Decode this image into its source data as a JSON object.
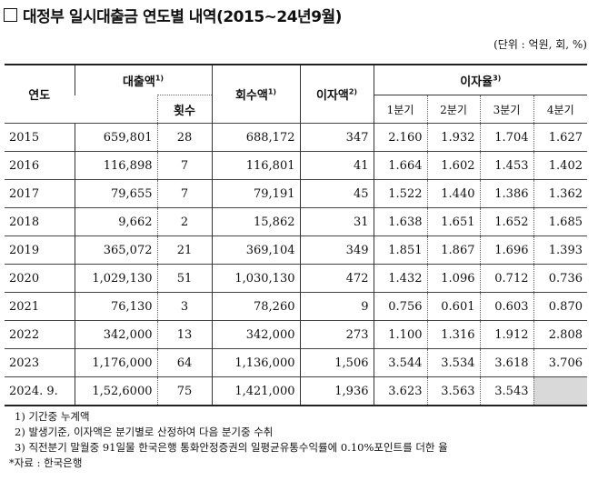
{
  "title": "대정부 일시대출금 연도별 내역(2015~24년9월)",
  "unit": "(단위 : 억원, 회, %)",
  "headers": {
    "year": "연도",
    "loan": "대출액",
    "loan_sup": "1)",
    "count": "횟수",
    "repay": "회수액",
    "repay_sup": "1)",
    "interest": "이자액",
    "interest_sup": "2)",
    "rate": "이자율",
    "rate_sup": "3)",
    "q1": "1분기",
    "q2": "2분기",
    "q3": "3분기",
    "q4": "4분기"
  },
  "rows": [
    [
      "2015",
      "659,801",
      "28",
      "688,172",
      "347",
      "2.160",
      "1.932",
      "1.704",
      "1.627"
    ],
    [
      "2016",
      "116,898",
      "7",
      "116,801",
      "41",
      "1.664",
      "1.602",
      "1.453",
      "1.402"
    ],
    [
      "2017",
      "79,655",
      "7",
      "79,191",
      "45",
      "1.522",
      "1.440",
      "1.386",
      "1.362"
    ],
    [
      "2018",
      "9,662",
      "2",
      "15,862",
      "31",
      "1.638",
      "1.651",
      "1.652",
      "1.685"
    ],
    [
      "2019",
      "365,072",
      "21",
      "369,104",
      "349",
      "1.851",
      "1.867",
      "1.696",
      "1.393"
    ],
    [
      "2020",
      "1,029,130",
      "51",
      "1,030,130",
      "472",
      "1.432",
      "1.096",
      "0.712",
      "0.736"
    ],
    [
      "2021",
      "76,130",
      "3",
      "78,260",
      "9",
      "0.756",
      "0.601",
      "0.603",
      "0.870"
    ],
    [
      "2022",
      "342,000",
      "13",
      "342,000",
      "273",
      "1.100",
      "1.316",
      "1.912",
      "2.808"
    ],
    [
      "2023",
      "1,176,000",
      "64",
      "1,136,000",
      "1,506",
      "3.544",
      "3.534",
      "3.618",
      "3.706"
    ],
    [
      "2024. 9.",
      "1,52,6000",
      "75",
      "1,421,000",
      "1,936",
      "3.623",
      "3.563",
      "3.543",
      ""
    ]
  ],
  "notes": [
    "1) 기간중 누계액",
    "2) 발생기준, 이자액은 분기별로 산정하여 다음 분기중 수취",
    "3) 직전분기 말월중 91일물 한국은행 통화안정증권의 일평균유통수익률에 0.10%포인트를 더한 율"
  ],
  "source": "*자료 : 한국은행"
}
